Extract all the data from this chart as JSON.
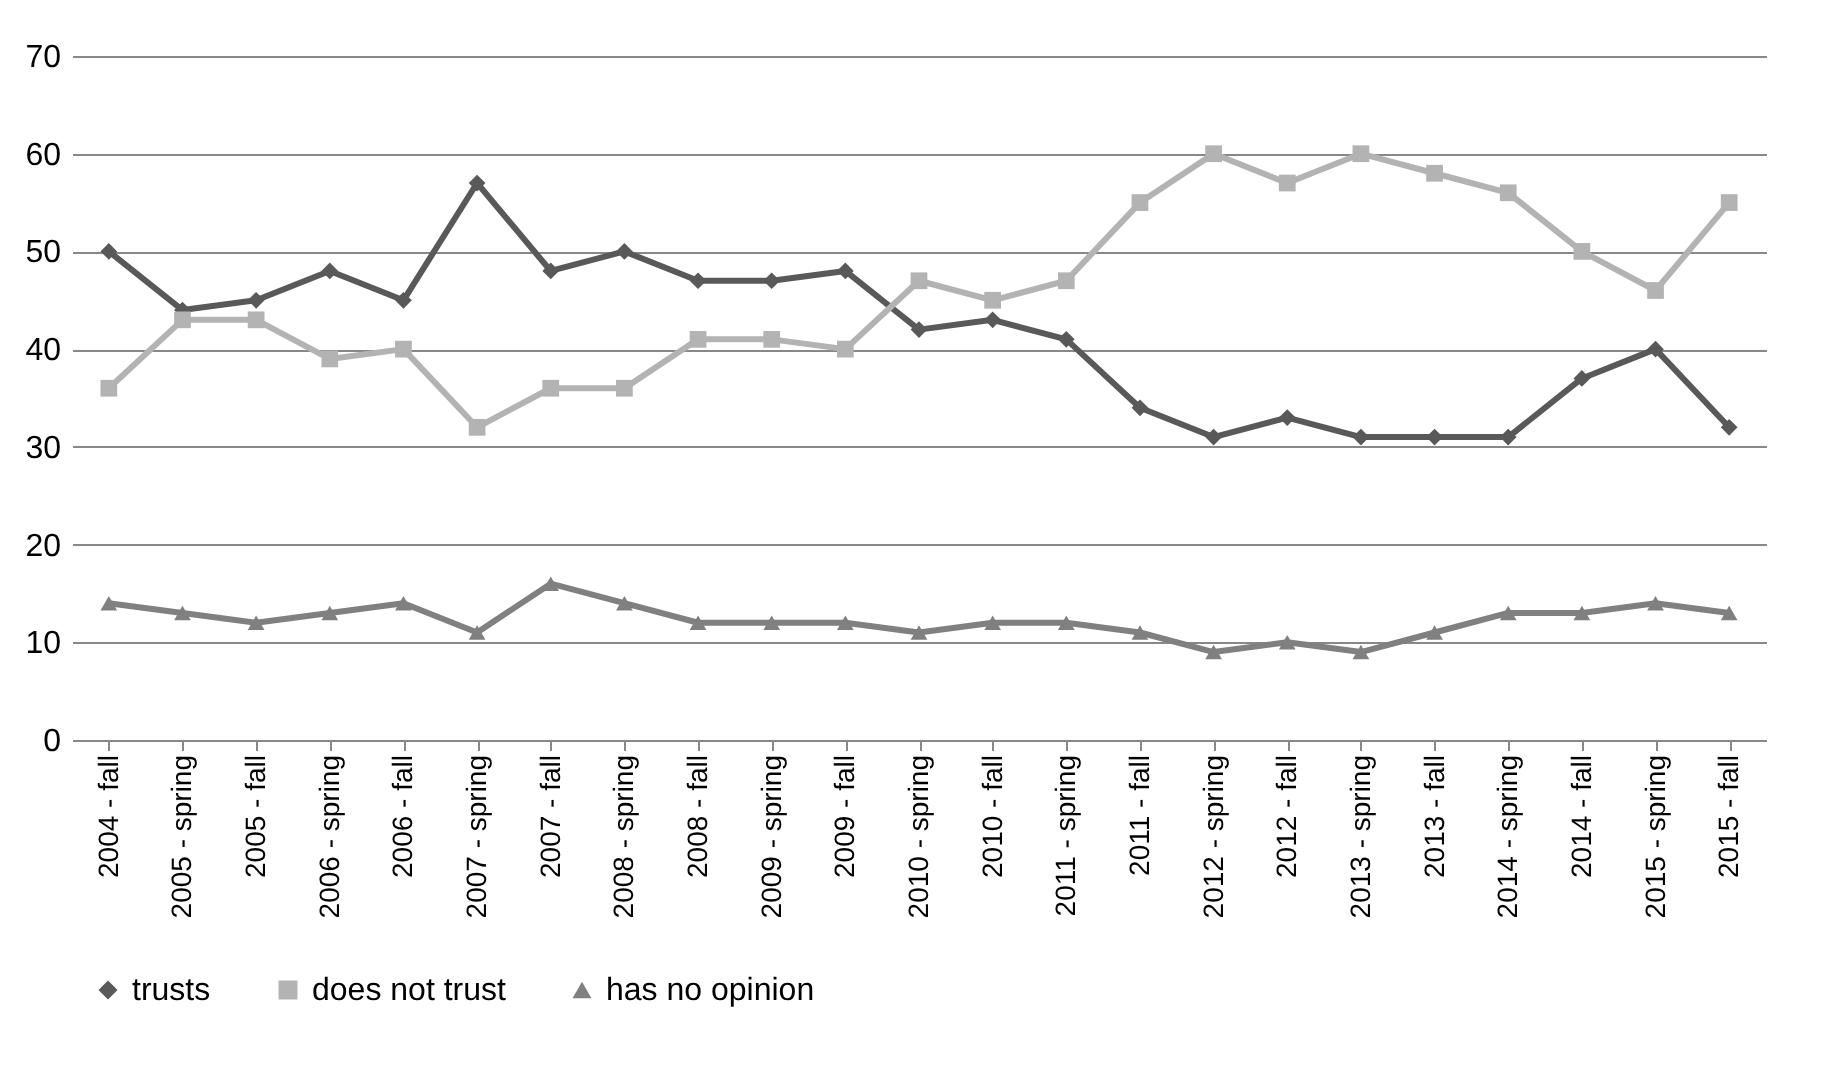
{
  "chart_data": {
    "type": "line",
    "categories": [
      "2004 - fall",
      "2005 - spring",
      "2005 - fall",
      "2006 - spring",
      "2006 - fall",
      "2007 - spring",
      "2007 - fall",
      "2008 - spring",
      "2008 - fall",
      "2009 - spring",
      "2009 - fall",
      "2010 - spring",
      "2010 - fall",
      "2011 - spring",
      "2011 - fall",
      "2012 - spring",
      "2012 - fall",
      "2013 - spring",
      "2013 - fall",
      "2014 - spring",
      "2014 - fall",
      "2015 - spring",
      "2015 - fall"
    ],
    "series": [
      {
        "name": "trusts",
        "color": "#595959",
        "marker": "diamond",
        "values": [
          50,
          44,
          45,
          48,
          45,
          57,
          48,
          50,
          47,
          47,
          48,
          42,
          43,
          41,
          34,
          31,
          33,
          31,
          31,
          31,
          37,
          40,
          32
        ]
      },
      {
        "name": "does not trust",
        "color": "#b3b3b3",
        "marker": "square",
        "values": [
          36,
          43,
          43,
          39,
          40,
          32,
          36,
          36,
          41,
          41,
          40,
          47,
          45,
          47,
          55,
          60,
          57,
          60,
          58,
          56,
          50,
          46,
          55
        ]
      },
      {
        "name": "has no opinion",
        "color": "#808080",
        "marker": "triangle",
        "values": [
          14,
          13,
          12,
          13,
          14,
          11,
          16,
          14,
          12,
          12,
          12,
          11,
          12,
          12,
          11,
          9,
          10,
          9,
          11,
          13,
          13,
          14,
          13
        ]
      }
    ],
    "ylim": [
      0,
      70
    ],
    "yticks": [
      0,
      10,
      20,
      30,
      40,
      50,
      60,
      70
    ],
    "grid": "y",
    "legend": "bottom",
    "line_style": "solid"
  }
}
